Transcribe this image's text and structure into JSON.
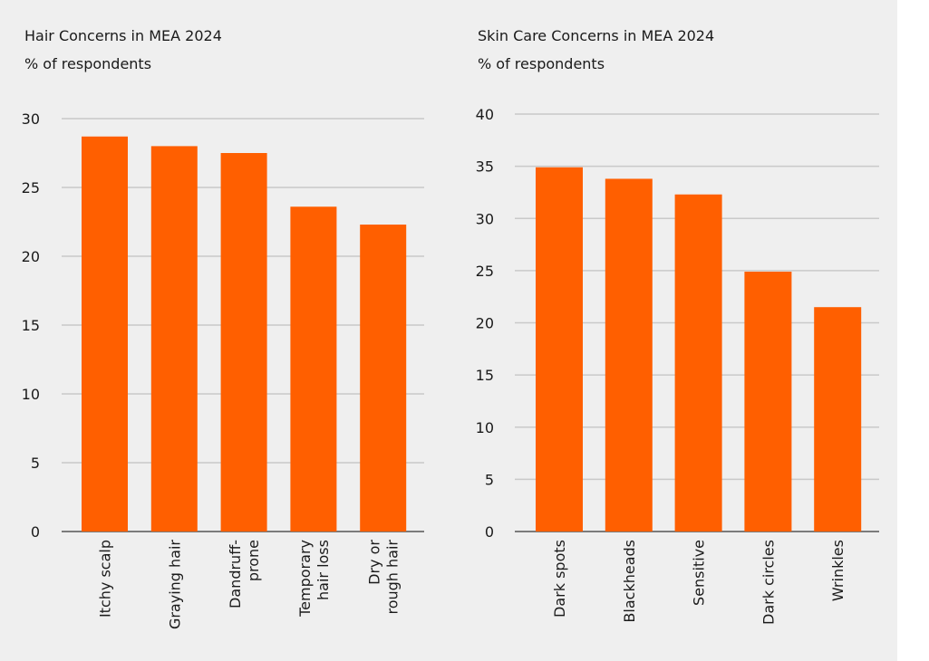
{
  "chart_data": [
    {
      "type": "bar",
      "title": "Hair Concerns in MEA 2024",
      "subtitle": "% of respondents",
      "categories": [
        [
          "Itchy scalp"
        ],
        [
          "Graying hair"
        ],
        [
          "Dandruff-",
          "prone"
        ],
        [
          "Temporary",
          "hair loss"
        ],
        [
          "Dry or",
          "rough hair"
        ]
      ],
      "values": [
        28.7,
        28.0,
        27.5,
        23.6,
        22.3
      ],
      "ylim": [
        0,
        30
      ],
      "yticks": [
        0,
        5,
        10,
        15,
        20,
        25,
        30
      ],
      "xlabel": "",
      "ylabel": "",
      "grid": true,
      "color": "#ff5f00"
    },
    {
      "type": "bar",
      "title": "Skin Care Concerns in MEA 2024",
      "subtitle": "% of respondents",
      "categories": [
        [
          "Dark spots"
        ],
        [
          "Blackheads"
        ],
        [
          "Sensitive"
        ],
        [
          "Dark circles"
        ],
        [
          "Wrinkles"
        ]
      ],
      "values": [
        34.9,
        33.8,
        32.3,
        24.9,
        21.5
      ],
      "ylim": [
        0,
        40
      ],
      "yticks": [
        0,
        5,
        10,
        15,
        20,
        25,
        30,
        35,
        40
      ],
      "xlabel": "",
      "ylabel": "",
      "grid": true,
      "color": "#ff5f00"
    }
  ]
}
